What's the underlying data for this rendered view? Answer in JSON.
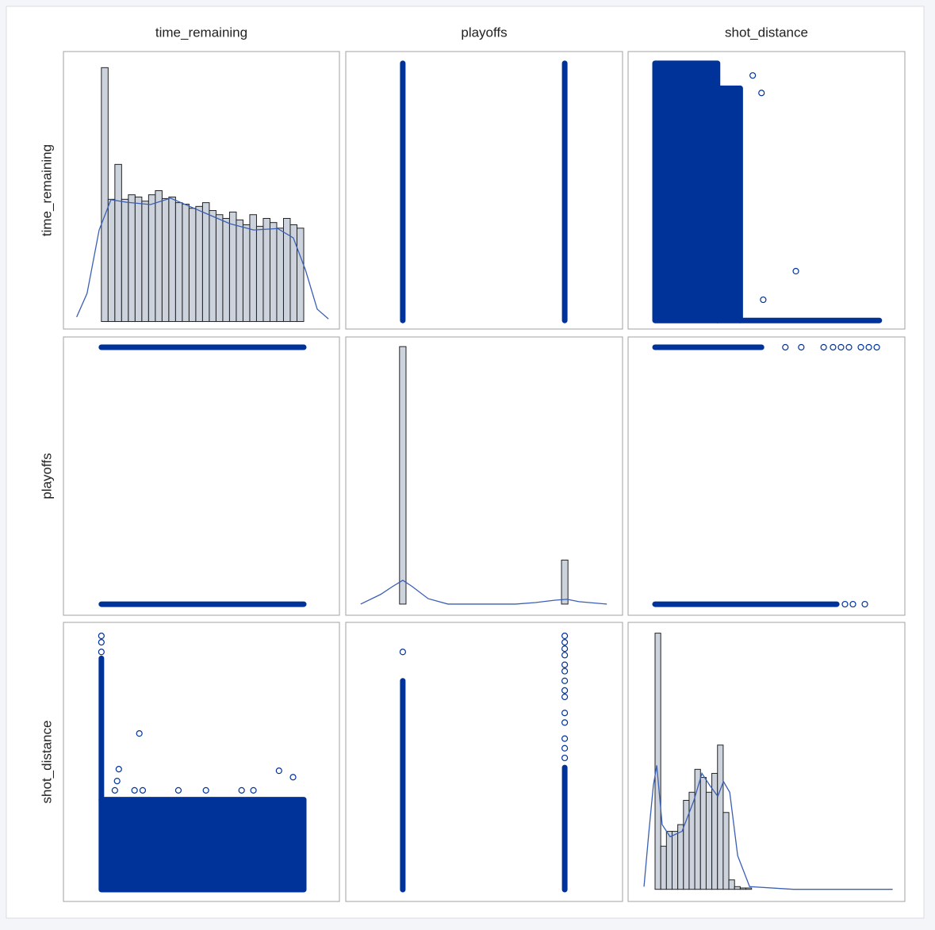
{
  "chart_data": {
    "type": "scatter_matrix",
    "color": "#003399",
    "hist_color": "#cdd3dd",
    "density_color": "#3a5fb5",
    "variables": [
      {
        "name": "time_remaining",
        "xlim": [
          -135,
          847
        ],
        "ylim": [
          -24,
          753
        ]
      },
      {
        "name": "playoffs",
        "xlim": [
          -0.352,
          1.357
        ],
        "ylim": [
          -0.043,
          1.04
        ]
      },
      {
        "name": "shot_distance",
        "xlim": [
          -9.5,
          88
        ],
        "ylim": [
          -3.7,
          83.2
        ]
      }
    ],
    "cells": [
      [
        {
          "type": "histogram",
          "bins": [
            0,
            24,
            48,
            72,
            96,
            120,
            144,
            168,
            192,
            216,
            240,
            264,
            288,
            312,
            336,
            360,
            384,
            408,
            432,
            456,
            480,
            504,
            528,
            552,
            576,
            600,
            624,
            648,
            672,
            696,
            720
          ],
          "values": [
            6.77,
            3.26,
            4.19,
            3.26,
            3.38,
            3.32,
            3.21,
            3.38,
            3.49,
            3.28,
            3.32,
            3.17,
            3.13,
            3.02,
            3.07,
            3.17,
            2.96,
            2.85,
            2.75,
            2.92,
            2.71,
            2.58,
            2.85,
            2.54,
            2.75,
            2.64,
            2.49,
            2.75,
            2.58,
            2.49
          ],
          "ylim": [
            -0.2,
            7.2
          ],
          "density": {
            "x": [
              -88,
              -51,
              -8,
              34,
              90,
              175,
              246,
              345,
              457,
              542,
              627,
              683,
              726,
              768,
              808
            ],
            "y": [
              0.12,
              0.75,
              2.44,
              3.25,
              3.18,
              3.12,
              3.29,
              2.97,
              2.61,
              2.44,
              2.48,
              2.23,
              1.38,
              0.33,
              0.07
            ]
          }
        },
        {
          "type": "scatter",
          "blocks": [
            {
              "x": [
                0,
                0
              ],
              "y": [
                0,
                720
              ]
            },
            {
              "x": [
                1,
                1
              ],
              "y": [
                0,
                720
              ]
            }
          ]
        },
        {
          "type": "scatter",
          "blocks": [
            {
              "x": [
                0,
                22
              ],
              "y": [
                0,
                720
              ]
            },
            {
              "x": [
                22,
                30
              ],
              "y": [
                0,
                650
              ]
            },
            {
              "x": [
                30,
                79
              ],
              "y": [
                0,
                0
              ]
            }
          ],
          "points": {
            "x": [
              34.4,
              37.5,
              49.6,
              38.1
            ],
            "y": [
              686,
              637,
              138,
              58
            ]
          }
        }
      ],
      [
        {
          "type": "scatter",
          "blocks": [
            {
              "x": [
                0,
                720
              ],
              "y": [
                1,
                1
              ]
            },
            {
              "x": [
                0,
                720
              ],
              "y": [
                0,
                0
              ]
            }
          ]
        },
        {
          "type": "histogram",
          "bins": [
            -0.02,
            0.02,
            0.98,
            1.02
          ],
          "values": [
            85.4,
            0,
            14.6
          ],
          "ylim": [
            -3.7,
            88.6
          ],
          "density": {
            "x": [
              -0.26,
              -0.137,
              -0.064,
              0,
              0.059,
              0.157,
              0.279,
              0.451,
              0.696,
              0.819,
              0.941,
              1.015,
              1.088,
              1.26
            ],
            "y": [
              0,
              3.2,
              5.8,
              7.9,
              5.8,
              1.8,
              0,
              0,
              0,
              0.5,
              1.3,
              1.6,
              0.8,
              0
            ]
          }
        },
        {
          "type": "scatter",
          "blocks": [
            {
              "x": [
                0,
                37.5
              ],
              "y": [
                1,
                1
              ]
            },
            {
              "x": [
                0,
                64
              ],
              "y": [
                0,
                0
              ]
            }
          ],
          "points": {
            "x": [
              45.9,
              51.5,
              59.4,
              62.7,
              65.5,
              68.3,
              72.5,
              75.3,
              78.1,
              66.9,
              69.7,
              73.9
            ],
            "y": [
              1,
              1,
              1,
              1,
              1,
              1,
              1,
              1,
              1,
              0,
              0,
              0
            ]
          }
        }
      ],
      [
        {
          "type": "scatter",
          "blocks": [
            {
              "x": [
                0,
                720
              ],
              "y": [
                0,
                28
              ]
            },
            {
              "x": [
                0,
                0
              ],
              "y": [
                28,
                72
              ]
            }
          ],
          "points": {
            "x": [
              0,
              0,
              0,
              135,
              62,
              632,
              682,
              56,
              48,
              118,
              147,
              274,
              372,
              499,
              541
            ],
            "y": [
              74,
              77,
              79,
              48.6,
              37.5,
              37,
              35,
              33.8,
              30.9,
              30.9,
              30.9,
              30.9,
              30.9,
              30.9,
              30.9
            ]
          }
        },
        {
          "type": "scatter",
          "blocks": [
            {
              "x": [
                0,
                0
              ],
              "y": [
                0,
                65
              ]
            },
            {
              "x": [
                1,
                1
              ],
              "y": [
                0,
                38
              ]
            }
          ],
          "points": {
            "x": [
              0,
              1,
              1,
              1,
              1,
              1,
              1,
              1,
              1,
              1,
              1,
              1,
              1,
              1,
              1
            ],
            "y": [
              74,
              79,
              77,
              75,
              73,
              70,
              68,
              65,
              62,
              60,
              55,
              52,
              47,
              44,
              41
            ]
          }
        },
        {
          "type": "histogram",
          "bins": [
            0,
            2,
            4,
            6,
            8,
            10,
            12,
            14,
            16,
            18,
            20,
            22,
            24,
            26,
            28,
            30,
            32,
            34
          ],
          "values": [
            19.0,
            3.2,
            4.3,
            4.3,
            4.8,
            6.6,
            7.2,
            8.9,
            8.3,
            7.2,
            8.6,
            10.7,
            5.7,
            0.7,
            0.2,
            0.1,
            0.1
          ],
          "ylim": [
            -0.9,
            19.8
          ],
          "density": {
            "x": [
              -3.9,
              -2.2,
              -0.6,
              0.6,
              2.5,
              5.3,
              9.5,
              13.7,
              16.5,
              19.3,
              22.1,
              24.1,
              26.3,
              29.1,
              33.3,
              48.7,
              83.7
            ],
            "y": [
              0.2,
              4.2,
              7.7,
              9.2,
              4.8,
              3.9,
              4.3,
              6.6,
              8.6,
              7.7,
              6.9,
              8.0,
              7.2,
              2.5,
              0.2,
              0,
              0
            ]
          }
        }
      ]
    ]
  }
}
